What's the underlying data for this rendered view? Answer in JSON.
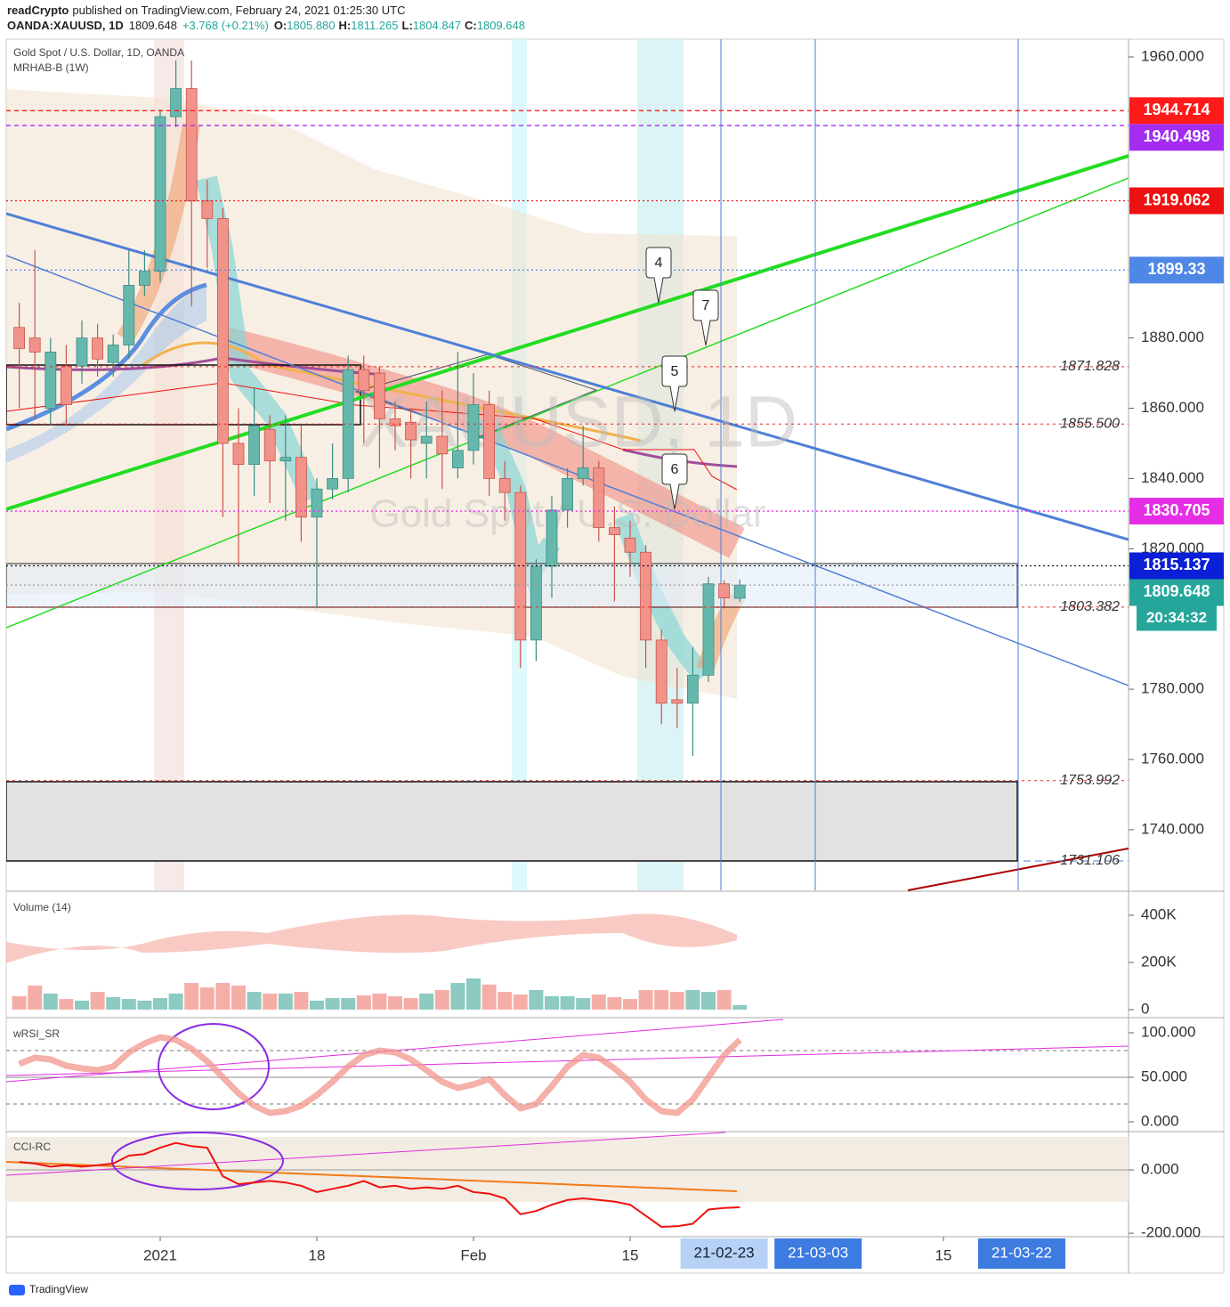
{
  "header": {
    "author": "readCrypto",
    "published": "published on TradingView.com, February 24, 2021 01:25:30 UTC",
    "symbol": "OANDA:XAUUSD, 1D",
    "last": "1809.648",
    "change": "+3.768 (+0.21%)",
    "ohlc": [
      {
        "key": "O:",
        "value": "1805.880"
      },
      {
        "key": "H:",
        "value": "1811.265"
      },
      {
        "key": "L:",
        "value": "1804.847"
      },
      {
        "key": "C:",
        "value": "1809.648"
      }
    ]
  },
  "legend": [
    "Gold Spot / U.S. Dollar, 1D, OANDA",
    "MRHAB-B (1W)"
  ],
  "watermark": [
    "XAUUSD, 1D",
    "Gold Spot / U.S. Dollar"
  ],
  "footer": "TradingView",
  "chart_data": [
    {
      "type": "candlestick",
      "up_color": "#66b8ad",
      "down_color": "#f2938a",
      "x": [
        -9,
        -8,
        -7,
        -6,
        -5,
        -4,
        -3,
        -2,
        -1,
        0,
        1,
        2,
        3,
        4,
        5,
        6,
        7,
        8,
        9,
        10,
        11,
        12,
        13,
        14,
        15,
        16,
        17,
        18,
        19,
        20,
        21,
        22,
        23,
        24,
        25,
        26,
        27,
        28,
        29,
        30,
        31,
        32,
        33,
        34,
        35,
        36,
        37
      ],
      "open": [
        1883,
        1880,
        1860,
        1872,
        1872,
        1880,
        1873,
        1878,
        1895,
        1899,
        1943,
        1951,
        1919,
        1914,
        1850,
        1844,
        1854,
        1845,
        1846,
        1829,
        1837,
        1840,
        1871,
        1870,
        1857,
        1856,
        1850,
        1852,
        1843,
        1848,
        1861,
        1840,
        1836,
        1794,
        1815,
        1831,
        1840,
        1843,
        1826,
        1823,
        1819,
        1794,
        1777,
        1776,
        1784,
        1810,
        1805.88
      ],
      "high": [
        1890,
        1905,
        1880,
        1878,
        1885,
        1884,
        1881,
        1905,
        1905,
        1945,
        1959,
        1959,
        1925,
        1917,
        1860,
        1866,
        1858,
        1858,
        1855,
        1840,
        1850,
        1875,
        1875,
        1872,
        1862,
        1860,
        1862,
        1865,
        1876,
        1870,
        1865,
        1845,
        1838,
        1817,
        1835,
        1843,
        1855,
        1845,
        1832,
        1828,
        1821,
        1797,
        1786,
        1792,
        1812,
        1811,
        1811.265
      ],
      "low": [
        1860,
        1857,
        1855,
        1855,
        1867,
        1869,
        1869,
        1874,
        1892,
        1896,
        1940,
        1889,
        1900,
        1829,
        1815,
        1835,
        1833,
        1828,
        1822,
        1803,
        1834,
        1836,
        1850,
        1843,
        1848,
        1840,
        1840,
        1837,
        1840,
        1844,
        1835,
        1828,
        1786,
        1788,
        1806,
        1826,
        1838,
        1822,
        1805,
        1812,
        1786,
        1770,
        1769,
        1761,
        1782,
        1803,
        1804.847
      ],
      "close": [
        1877,
        1876,
        1876,
        1861,
        1880,
        1874,
        1878,
        1895,
        1899,
        1943,
        1951,
        1919,
        1914,
        1850,
        1844,
        1855,
        1845,
        1846,
        1829,
        1837,
        1840,
        1871,
        1865,
        1857,
        1855,
        1851,
        1852,
        1847,
        1848,
        1861,
        1840,
        1836,
        1794,
        1815,
        1831,
        1840,
        1843,
        1826,
        1824,
        1819,
        1794,
        1776,
        1776,
        1784,
        1810,
        1806,
        1809.648
      ],
      "xlim": [
        -9.83,
        61.82
      ],
      "ylim": [
        1722.74,
        1965.07
      ],
      "xticks": [
        {
          "value": 0,
          "label": "2021"
        },
        {
          "value": 10,
          "label": "18"
        },
        {
          "value": 20,
          "label": "Feb"
        },
        {
          "value": 30,
          "label": "15"
        },
        {
          "value": 50,
          "label": "15"
        }
      ],
      "cursor_labels": [
        {
          "value": 36,
          "label": "21-02-23"
        },
        {
          "value": 42,
          "label": "21-03-03"
        },
        {
          "value": 55,
          "label": "21-03-22"
        }
      ],
      "yticks": [
        {
          "value": 1960,
          "label": "1960.000"
        },
        {
          "value": 1880,
          "label": "1880.000"
        },
        {
          "value": 1860,
          "label": "1860.000"
        },
        {
          "value": 1840,
          "label": "1840.000"
        },
        {
          "value": 1820,
          "label": "1820.000"
        },
        {
          "value": 1780,
          "label": "1780.000"
        },
        {
          "value": 1760,
          "label": "1760.000"
        },
        {
          "value": 1740,
          "label": "1740.000"
        }
      ],
      "grid": false,
      "price_badges": [
        {
          "value": 1944.714,
          "color": "#ff1a1a",
          "line": "dash"
        },
        {
          "value": 1940.498,
          "color": "#a32cf0",
          "line": "dash"
        },
        {
          "value": 1919.062,
          "color": "#ee1111",
          "line": "dot"
        },
        {
          "value": 1899.33,
          "color": "#4f87e6",
          "line": "dot"
        },
        {
          "value": 1830.705,
          "color": "#e62ee6",
          "line": "dot"
        },
        {
          "value": 1815.137,
          "color": "#0a1fd6",
          "line": "dot"
        },
        {
          "value": 1809.648,
          "color": "#26a69a",
          "line": "dot"
        }
      ],
      "countdown": "20:34:32",
      "level_labels": [
        {
          "value": 1871.828
        },
        {
          "value": 1855.5,
          "label": "1855.500"
        },
        {
          "value": 1803.382
        },
        {
          "value": 1753.992
        },
        {
          "value": 1731.106
        }
      ],
      "annotations": [
        "4",
        "7",
        "5",
        "6"
      ]
    },
    {
      "type": "bar",
      "title": "Volume (14)",
      "values": [
        57000,
        102000,
        68000,
        45000,
        38000,
        75000,
        53000,
        45000,
        38000,
        49000,
        68000,
        113000,
        94000,
        113000,
        102000,
        75000,
        68000,
        68000,
        75000,
        38000,
        49000,
        49000,
        60000,
        68000,
        57000,
        49000,
        68000,
        83000,
        113000,
        132000,
        106000,
        75000,
        64000,
        83000,
        57000,
        57000,
        49000,
        64000,
        53000,
        45000,
        83000,
        83000,
        75000,
        83000,
        75000,
        83000,
        19000
      ],
      "ylim": [
        -34000,
        494000
      ],
      "yticks": [
        {
          "value": 400000,
          "label": "400K"
        },
        {
          "value": 200000,
          "label": "200K"
        },
        0
      ]
    },
    {
      "type": "line",
      "title": "wRSI_SR",
      "color": "#f2958c",
      "values": [
        65,
        72,
        70,
        63,
        60,
        58,
        62,
        78,
        88,
        95,
        92,
        82,
        68,
        50,
        32,
        18,
        10,
        12,
        18,
        30,
        45,
        62,
        75,
        80,
        78,
        70,
        58,
        45,
        38,
        42,
        48,
        30,
        15,
        20,
        40,
        62,
        75,
        72,
        60,
        45,
        25,
        12,
        10,
        25,
        50,
        75,
        92
      ],
      "ylim": [
        -10,
        115
      ],
      "yticks": [
        {
          "value": 100,
          "label": "100.000"
        },
        {
          "value": 50,
          "label": "50.000"
        },
        {
          "value": 0,
          "label": "0.000"
        }
      ]
    },
    {
      "type": "line",
      "title": "CCI-RC",
      "color": "#ee1111",
      "values": [
        25,
        20,
        10,
        15,
        10,
        15,
        20,
        45,
        50,
        70,
        85,
        75,
        70,
        -20,
        -45,
        -40,
        -35,
        -40,
        -50,
        -70,
        -60,
        -50,
        -35,
        -55,
        -50,
        -60,
        -55,
        -60,
        -50,
        -70,
        -75,
        -90,
        -140,
        -130,
        -110,
        -95,
        -90,
        -95,
        -100,
        -110,
        -145,
        -180,
        -178,
        -170,
        -125,
        -120,
        -118
      ],
      "ylim": [
        -208,
        118
      ],
      "yticks": [
        {
          "value": 0,
          "label": "0.000"
        },
        {
          "value": -200,
          "label": "-200.000"
        }
      ]
    }
  ]
}
